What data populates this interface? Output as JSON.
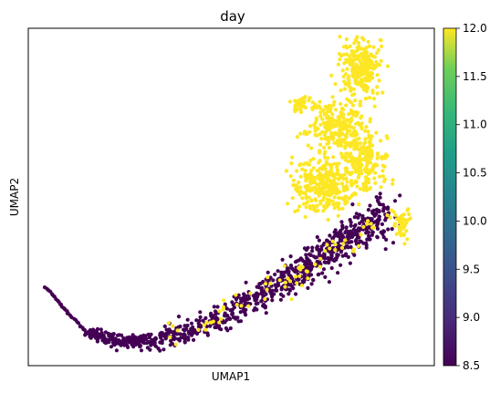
{
  "chart_data": {
    "type": "scatter",
    "title": "day",
    "xlabel": "UMAP1",
    "ylabel": "UMAP2",
    "x_ticks_shown": false,
    "y_ticks_shown": false,
    "grid": false,
    "colormap": "viridis",
    "colorbar": {
      "min": 8.5,
      "max": 12.0,
      "ticks": [
        "8.5",
        "9.0",
        "9.5",
        "10.0",
        "10.5",
        "11.0",
        "11.5",
        "12.0"
      ],
      "position": "right"
    },
    "series": [
      {
        "value": 8.5,
        "color": "#440154"
      },
      {
        "value": 12.0,
        "color": "#fde725"
      }
    ],
    "note_regions": [
      {
        "value": 12.0,
        "region": "upper plume"
      },
      {
        "value": 8.5,
        "region": "lower arc"
      }
    ]
  }
}
